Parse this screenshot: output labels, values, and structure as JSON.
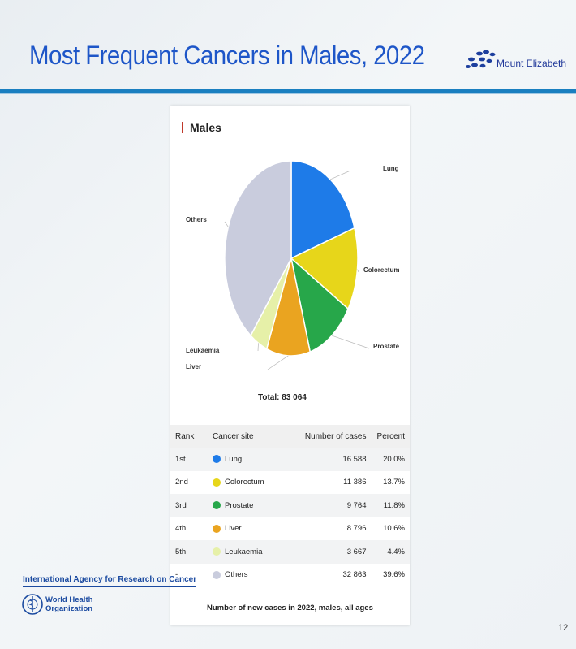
{
  "slide": {
    "title": "Most Frequent Cancers in Males, 2022",
    "logo_text": "Mount Elizabeth",
    "page_number": "12"
  },
  "chart_data": {
    "type": "pie",
    "title": "Males",
    "total_label": "Total: 83 064",
    "categories": [
      "Lung",
      "Colorectum",
      "Prostate",
      "Liver",
      "Leukaemia",
      "Others"
    ],
    "values": [
      16588,
      11386,
      9764,
      8796,
      3667,
      32863
    ],
    "colors": [
      "#1e7be8",
      "#e7d61a",
      "#27a74a",
      "#eaa420",
      "#e6f0a8",
      "#c9ccdd"
    ]
  },
  "table": {
    "headers": [
      "Rank",
      "Cancer site",
      "Number of cases",
      "Percent"
    ],
    "rows": [
      {
        "rank": "1st",
        "site": "Lung",
        "cases": "16 588",
        "percent": "20.0%"
      },
      {
        "rank": "2nd",
        "site": "Colorectum",
        "cases": "11 386",
        "percent": "13.7%"
      },
      {
        "rank": "3rd",
        "site": "Prostate",
        "cases": "9 764",
        "percent": "11.8%"
      },
      {
        "rank": "4th",
        "site": "Liver",
        "cases": "8 796",
        "percent": "10.6%"
      },
      {
        "rank": "5th",
        "site": "Leukaemia",
        "cases": "3 667",
        "percent": "4.4%"
      },
      {
        "rank": "-",
        "site": "Others",
        "cases": "32 863",
        "percent": "39.6%"
      }
    ],
    "caption": "Number of new cases in 2022, males, all ages"
  },
  "footer": {
    "iarc": "International Agency for Research on Cancer",
    "who_line1": "World Health",
    "who_line2": "Organization"
  }
}
